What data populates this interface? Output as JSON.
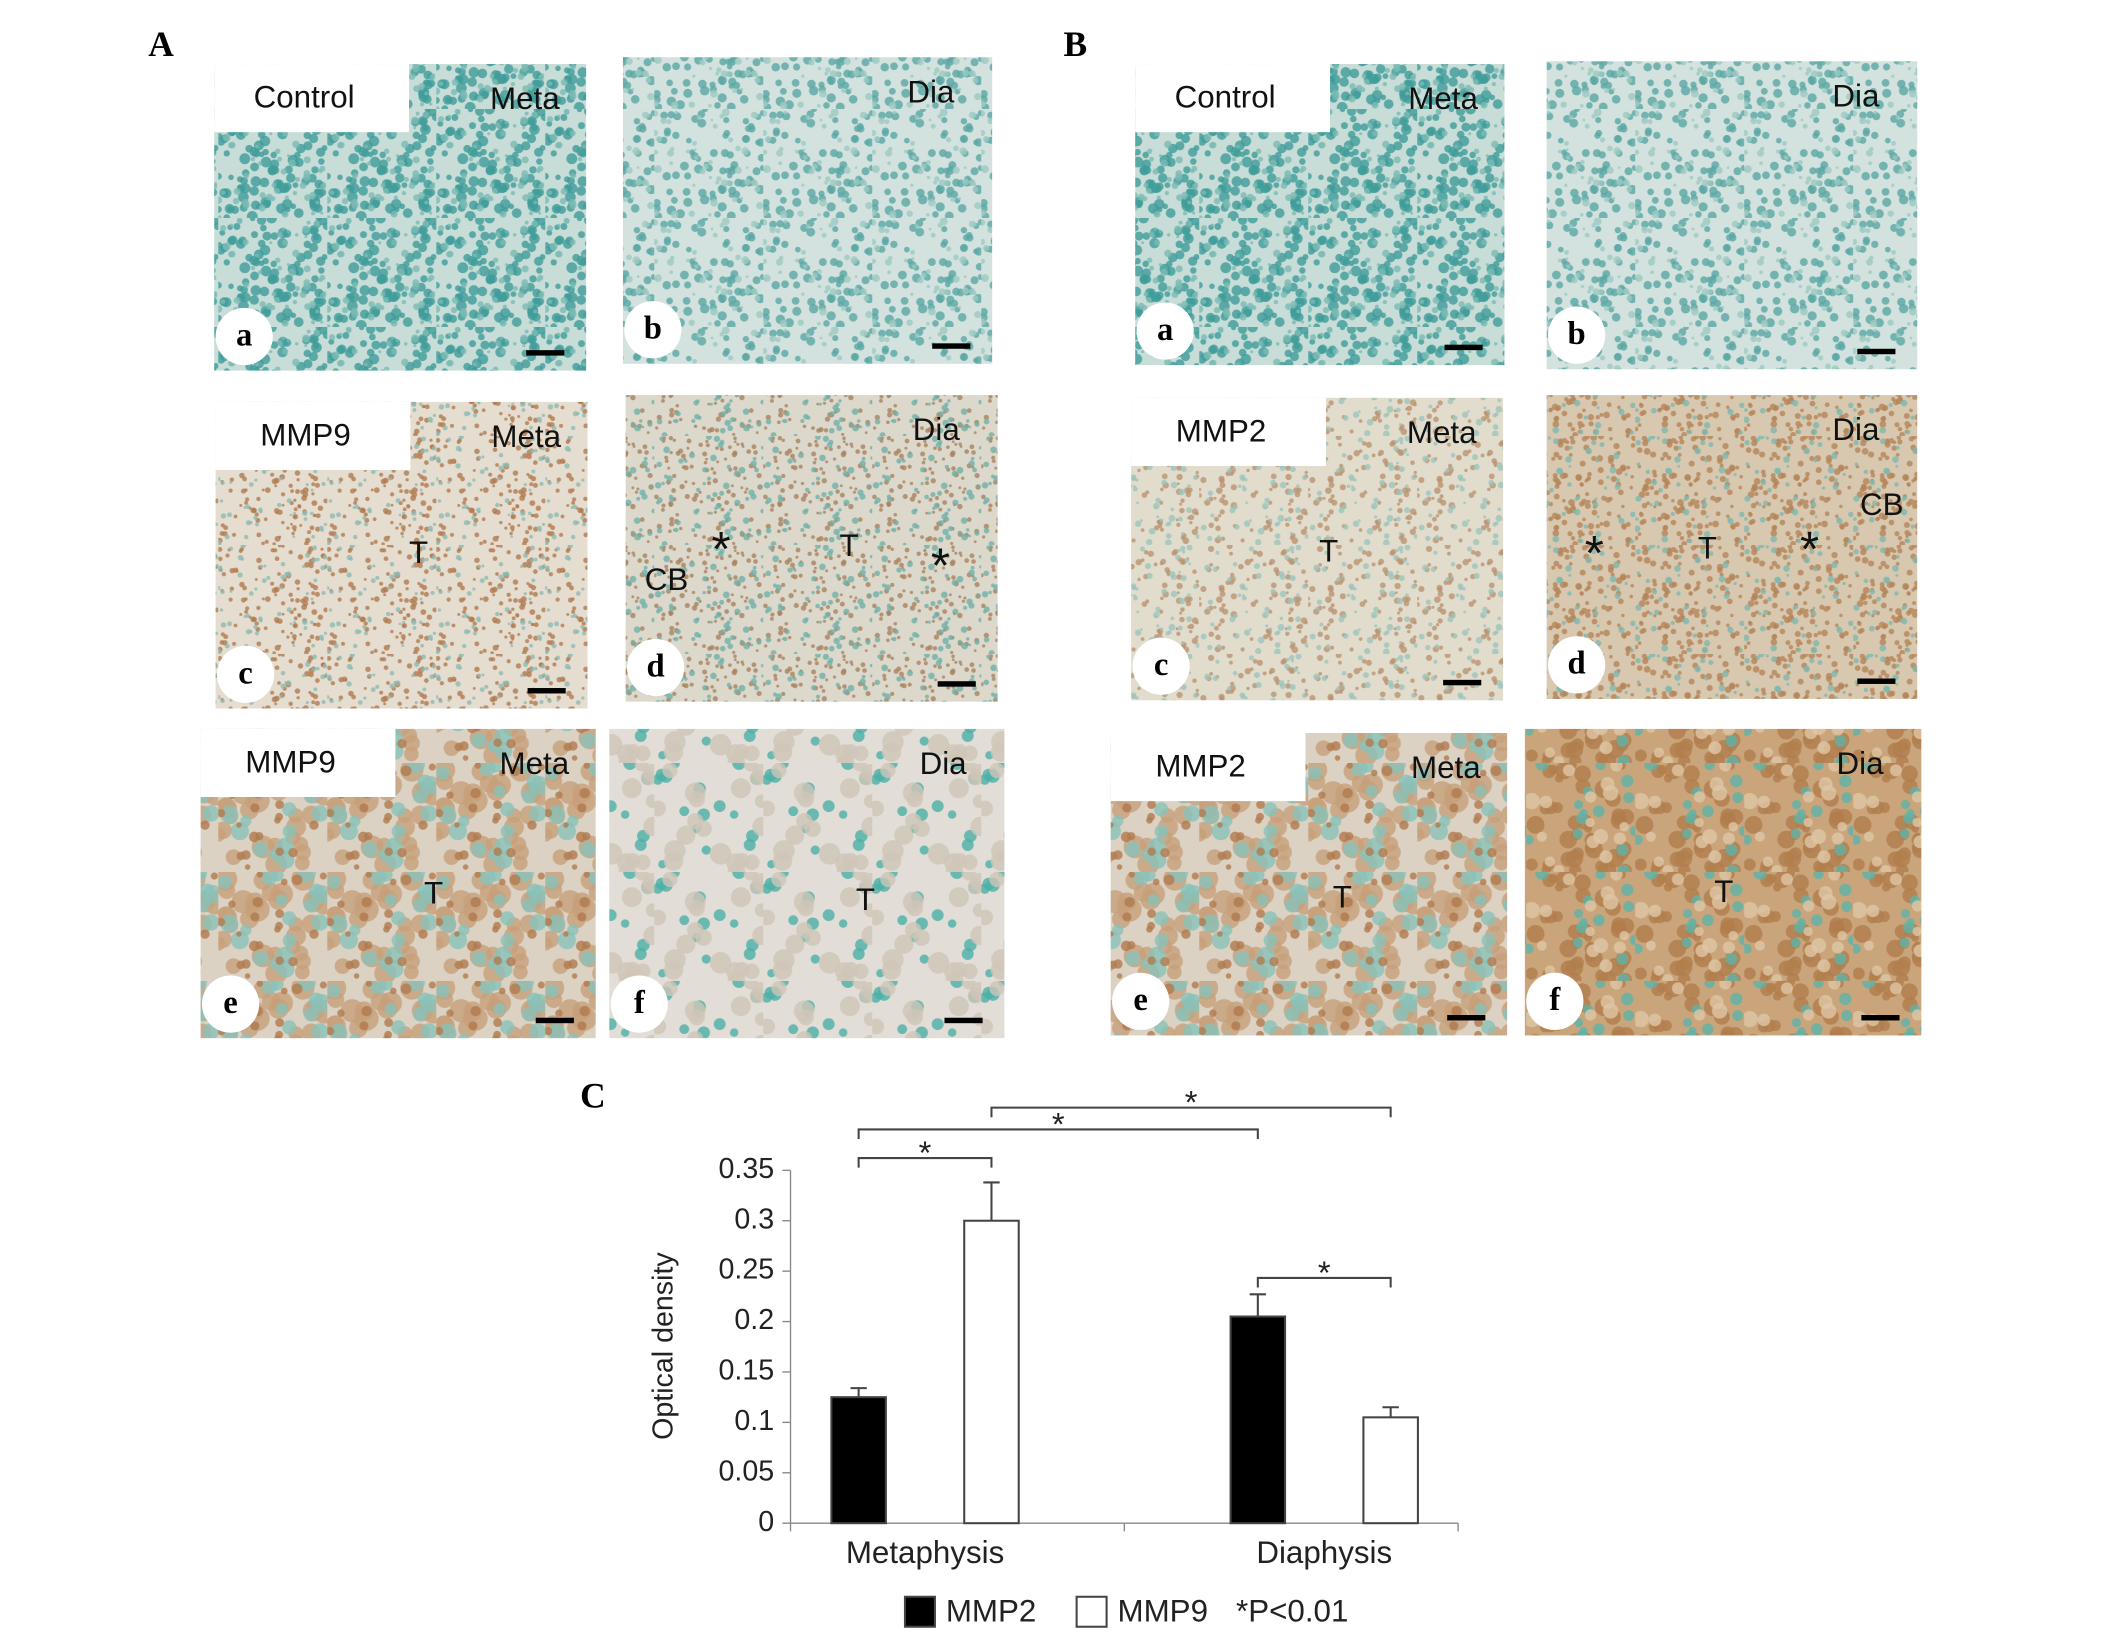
{
  "panels": [
    {
      "label": "A",
      "tiles": [
        {
          "letter": "a",
          "group": "Control",
          "region": "Meta",
          "annotations": []
        },
        {
          "letter": "b",
          "region": "Dia",
          "annotations": []
        },
        {
          "letter": "c",
          "group": "MMP9",
          "region": "Meta",
          "annotations": [
            "T"
          ]
        },
        {
          "letter": "d",
          "region": "Dia",
          "annotations": [
            "CB",
            "*",
            "T",
            "*"
          ]
        },
        {
          "letter": "e",
          "group": "MMP9",
          "region": "Meta",
          "annotations": [
            "T"
          ]
        },
        {
          "letter": "f",
          "region": "Dia",
          "annotations": [
            "T"
          ]
        }
      ]
    },
    {
      "label": "B",
      "tiles": [
        {
          "letter": "a",
          "group": "Control",
          "region": "Meta",
          "annotations": []
        },
        {
          "letter": "b",
          "region": "Dia",
          "annotations": []
        },
        {
          "letter": "c",
          "group": "MMP2",
          "region": "Meta",
          "annotations": [
            "T"
          ]
        },
        {
          "letter": "d",
          "region": "Dia",
          "annotations": [
            "*",
            "T",
            "*",
            "CB"
          ]
        },
        {
          "letter": "e",
          "group": "MMP2",
          "region": "Meta",
          "annotations": [
            "T"
          ]
        },
        {
          "letter": "f",
          "region": "Dia",
          "annotations": [
            "T"
          ]
        }
      ]
    }
  ],
  "chart_data": {
    "type": "bar",
    "panel_label": "C",
    "y_label": "Optical density",
    "categories": [
      "Metaphysis",
      "Diaphysis"
    ],
    "series": [
      {
        "name": "MMP2",
        "color": "#000000",
        "values": [
          0.125,
          0.205
        ],
        "errors": [
          0.009,
          0.022
        ]
      },
      {
        "name": "MMP9",
        "color": "#ffffff",
        "values": [
          0.3,
          0.105
        ],
        "errors": [
          0.038,
          0.01
        ]
      }
    ],
    "ylim": [
      0,
      0.35
    ],
    "yticks": [
      0,
      0.05,
      0.1,
      0.15,
      0.2,
      0.25,
      0.3,
      0.35
    ],
    "annotations": [
      "*",
      "*",
      "*",
      "*"
    ],
    "note": "*P<0.01"
  }
}
